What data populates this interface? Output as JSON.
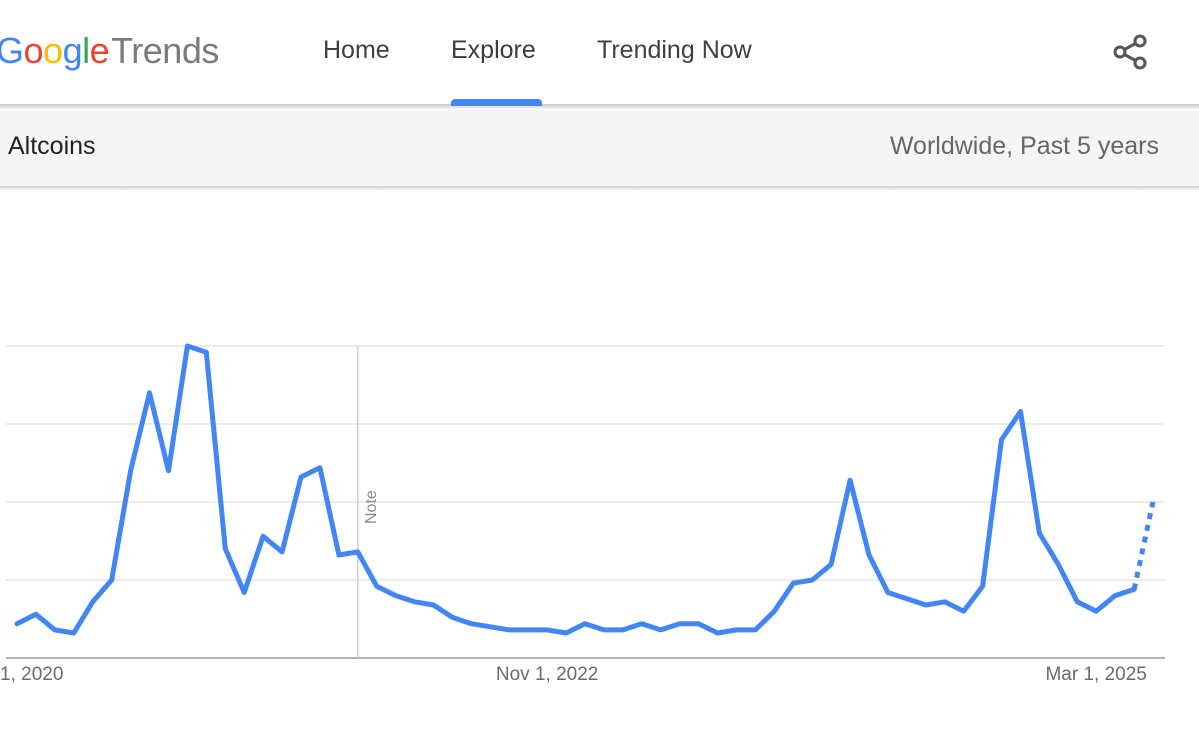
{
  "header": {
    "logo_google": [
      "G",
      "o",
      "o",
      "g",
      "l",
      "e"
    ],
    "logo_google_colors": [
      "#4285f4",
      "#ea4335",
      "#fbbc05",
      "#4285f4",
      "#34a853",
      "#ea4335"
    ],
    "logo_trends": "Trends",
    "nav": [
      {
        "label": "Home",
        "active": false
      },
      {
        "label": "Explore",
        "active": true
      },
      {
        "label": "Trending Now",
        "active": false
      }
    ],
    "share_icon": "share-icon",
    "accent_color": "#4285f4"
  },
  "query": {
    "term": "Altcoins",
    "scope": "Worldwide, Past 5 years"
  },
  "chart_data": {
    "type": "line",
    "title": "",
    "xlabel": "",
    "ylabel": "",
    "x_tick_labels": [
      "1, 2020",
      "Nov 1, 2022",
      "Mar 1, 2025"
    ],
    "x_tick_index": [
      0,
      28,
      57
    ],
    "ylim": [
      0,
      100
    ],
    "y_gridlines": [
      0,
      25,
      50,
      75,
      100
    ],
    "grid": true,
    "note_label": "Note",
    "note_index": 18,
    "series": [
      {
        "color": "#4285f4",
        "values": [
          11,
          14,
          9,
          8,
          18,
          25,
          60,
          85,
          60,
          100,
          98,
          35,
          21,
          39,
          34,
          58,
          61,
          33,
          34,
          23,
          20,
          18,
          17,
          13,
          11,
          10,
          9,
          9,
          9,
          8,
          11,
          9,
          9,
          11,
          9,
          11,
          11,
          8,
          9,
          9,
          15,
          24,
          25,
          30,
          57,
          33,
          21,
          19,
          17,
          18,
          15,
          23,
          70,
          79,
          40,
          30,
          18,
          15,
          20,
          22,
          50
        ],
        "partial_from_index": 59
      }
    ]
  }
}
